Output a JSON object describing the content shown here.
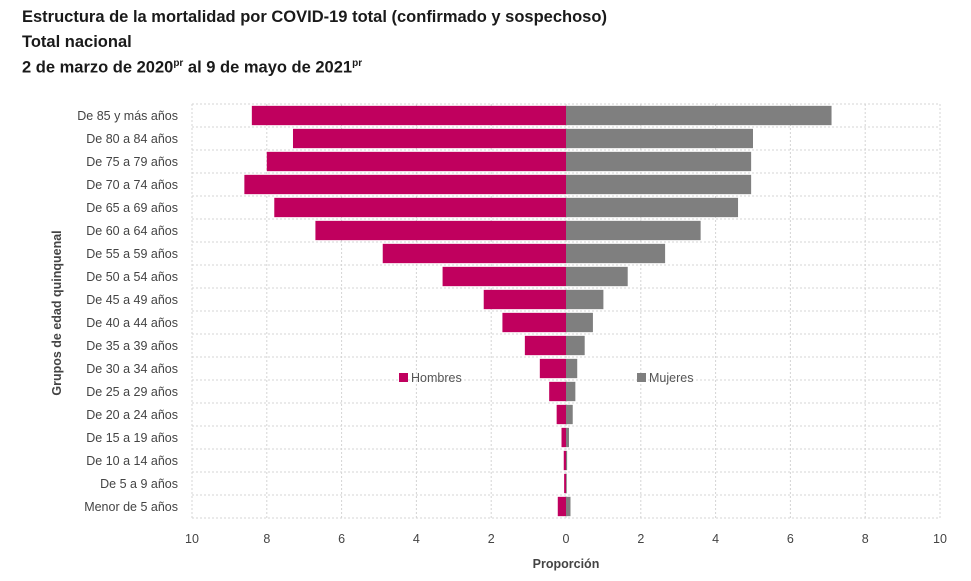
{
  "title": {
    "line1": "Estructura de la mortalidad por COVID-19 total (confirmado y sospechoso)",
    "line2": "Total nacional",
    "line3_a": "2 de marzo de 2020",
    "line3_sup1": "pr",
    "line3_b": " al 9 de mayo de 2021",
    "line3_sup2": "pr"
  },
  "colors": {
    "hombres": "#c0005e",
    "mujeres": "#7f7f7f",
    "grid": "#d4d4d4"
  },
  "chart_data": {
    "type": "bar",
    "orientation": "horizontal-pyramid",
    "categories": [
      "De 85 y más años",
      "De 80 a 84 años",
      "De 75 a 79 años",
      "De 70 a 74 años",
      "De 65 a 69 años",
      "De 60 a 64 años",
      "De 55 a 59 años",
      "De 50 a 54 años",
      "De 45 a 49 años",
      "De 40 a 44 años",
      "De 35 a 39 años",
      "De 30 a 34 años",
      "De 25 a 29 años",
      "De 20 a 24 años",
      "De 15 a 19 años",
      "De 10 a 14 años",
      "De 5 a 9 años",
      "Menor de 5 años"
    ],
    "series": [
      {
        "name": "Hombres",
        "side": "left",
        "values": [
          8.4,
          7.3,
          8.0,
          8.6,
          7.8,
          6.7,
          4.9,
          3.3,
          2.2,
          1.7,
          1.1,
          0.7,
          0.45,
          0.25,
          0.12,
          0.06,
          0.05,
          0.22
        ]
      },
      {
        "name": "Mujeres",
        "side": "right",
        "values": [
          7.1,
          5.0,
          4.95,
          4.95,
          4.6,
          3.6,
          2.65,
          1.65,
          1.0,
          0.72,
          0.5,
          0.3,
          0.25,
          0.18,
          0.08,
          0.03,
          0.02,
          0.12
        ]
      }
    ],
    "xlim": [
      -10,
      10
    ],
    "xticks": [
      -10,
      -8,
      -6,
      -4,
      -2,
      0,
      2,
      4,
      6,
      8,
      10
    ],
    "xtick_labels": [
      "10",
      "8",
      "6",
      "4",
      "2",
      "0",
      "2",
      "4",
      "6",
      "8",
      "10"
    ],
    "xlabel": "Proporción",
    "ylabel": "Grupos de edad quinquenal",
    "grid": true,
    "legend": [
      "Hombres",
      "Mujeres"
    ]
  }
}
